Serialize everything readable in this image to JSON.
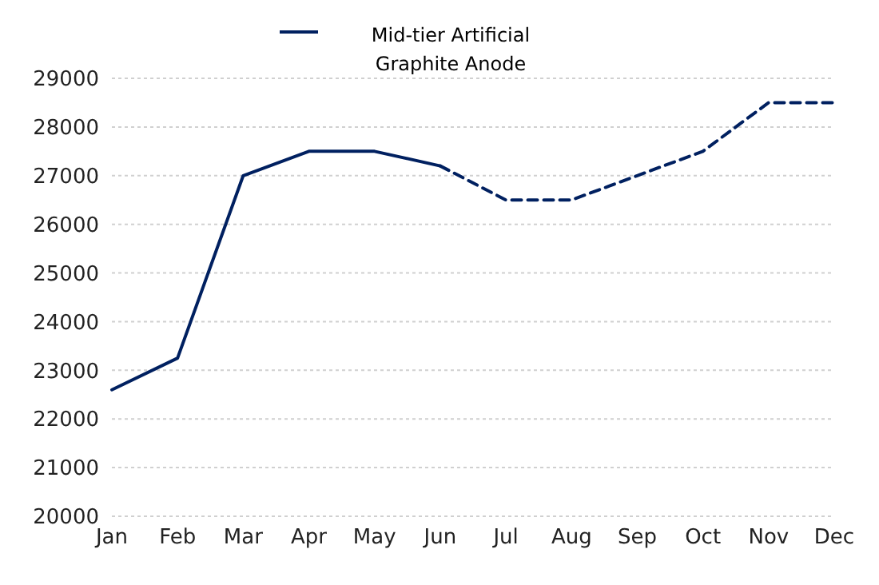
{
  "chart_data": {
    "type": "line",
    "categories": [
      "Jan",
      "Feb",
      "Mar",
      "Apr",
      "May",
      "Jun",
      "Jul",
      "Aug",
      "Sep",
      "Oct",
      "Nov",
      "Dec"
    ],
    "series": [
      {
        "name": "Mid-tier Artificial Graphite Anode",
        "color": "#002060",
        "line_style": "solid",
        "values": [
          22600,
          23250,
          27000,
          27500,
          27500,
          27200,
          null,
          null,
          null,
          null,
          null,
          null
        ]
      },
      {
        "color": "#002060",
        "line_style": "dashed",
        "values": [
          null,
          null,
          null,
          null,
          null,
          27200,
          26500,
          26500,
          27000,
          27500,
          28500,
          28500
        ]
      }
    ],
    "ylim": [
      20000,
      29000
    ],
    "yticks": [
      20000,
      21000,
      22000,
      23000,
      24000,
      25000,
      26000,
      27000,
      28000,
      29000
    ],
    "grid": "y",
    "legend": "top",
    "marker": "none"
  }
}
